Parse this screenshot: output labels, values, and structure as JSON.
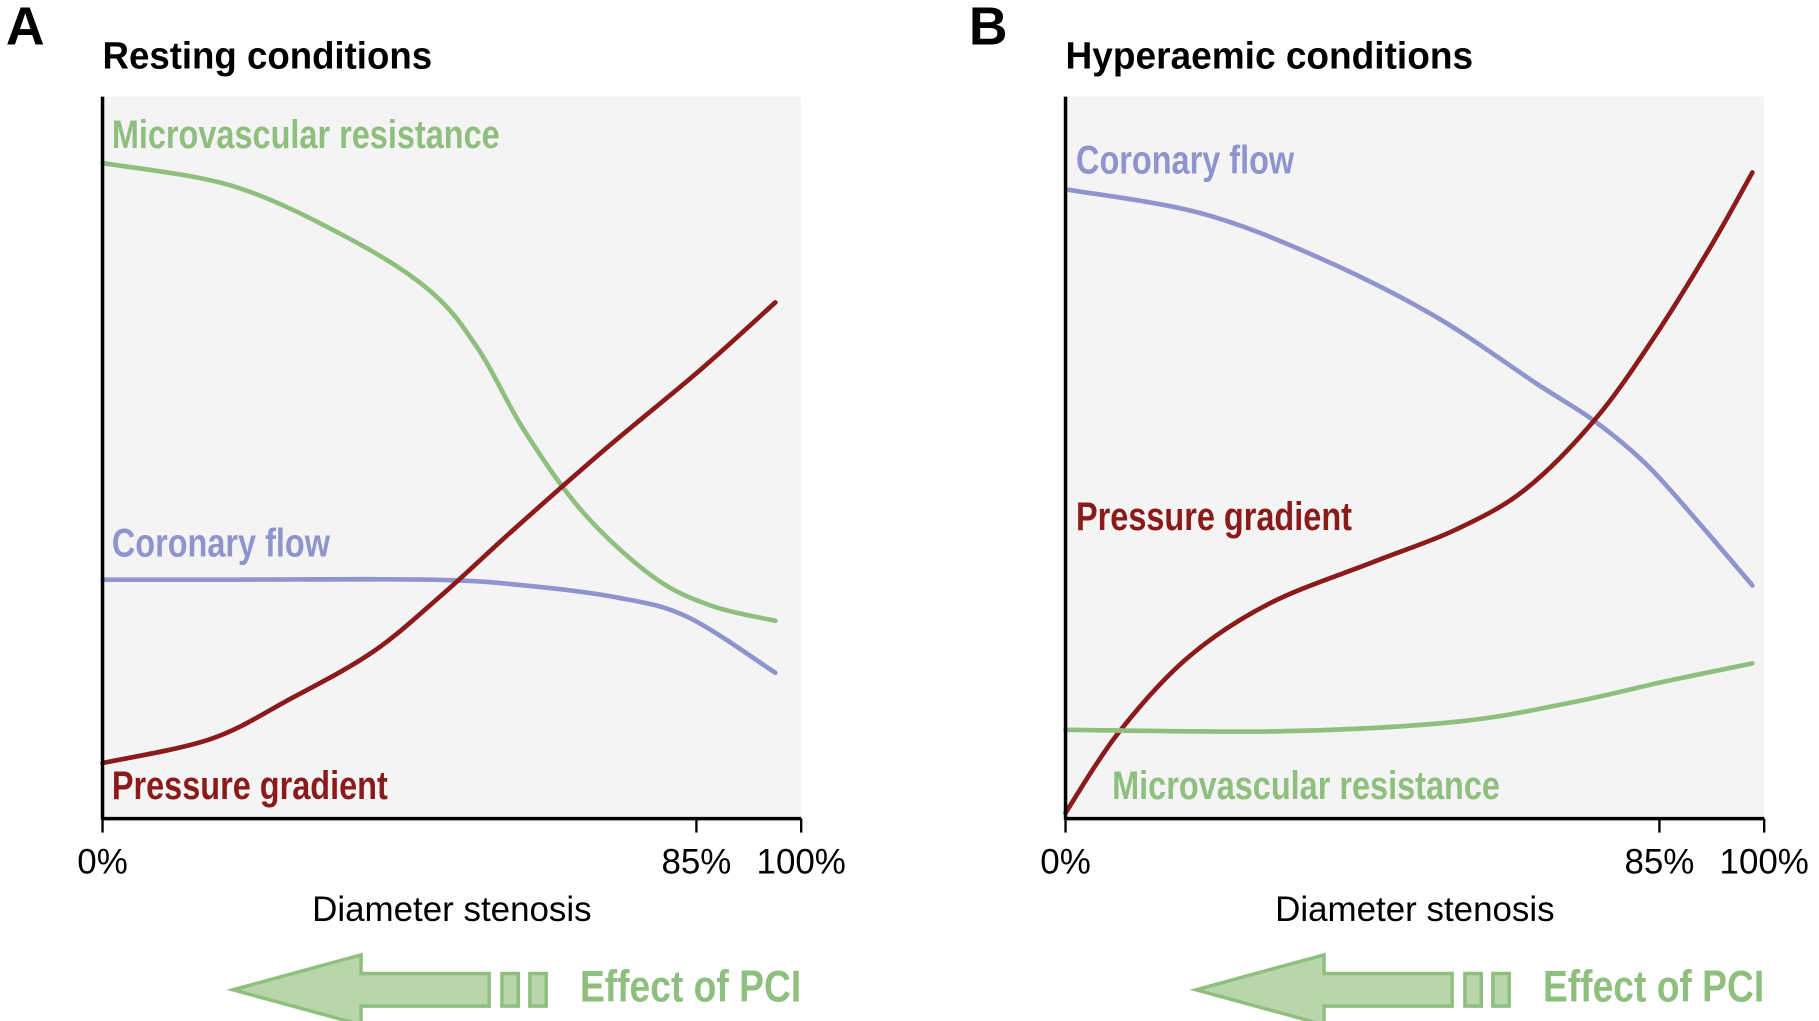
{
  "chart_data": [
    {
      "type": "line",
      "panel_label": "A",
      "title": "Resting conditions",
      "xlabel": "Diameter stenosis",
      "annotation": "Effect of PCI",
      "xlim": [
        0,
        100
      ],
      "ylim": [
        0,
        100
      ],
      "xticks": [
        {
          "value": 0,
          "label": "0%"
        },
        {
          "value": 85,
          "label": "85%"
        },
        {
          "value": 100,
          "label": "100%"
        }
      ],
      "series": [
        {
          "name": "Microvascular resistance",
          "color": "#8fbf7f",
          "x": [
            0,
            18.7,
            35.4,
            47,
            53.8,
            60.4,
            68.8,
            78.8,
            87.1,
            96.3
          ],
          "values": [
            90.8,
            87.6,
            80.3,
            73,
            65,
            53.7,
            42.4,
            33.5,
            29.5,
            27.4
          ]
        },
        {
          "name": "Coronary flow",
          "color": "#8f95cc",
          "x": [
            0,
            18.7,
            47,
            60.4,
            73.8,
            83.8,
            96.3
          ],
          "values": [
            33.1,
            33.1,
            33.1,
            32.3,
            30.6,
            27.9,
            20.2
          ]
        },
        {
          "name": "Pressure gradient",
          "color": "#8b1a1a",
          "x": [
            0,
            15.4,
            26.9,
            38.7,
            48.7,
            58.8,
            72.1,
            85.5,
            96.3
          ],
          "values": [
            7.7,
            11,
            16.6,
            23.1,
            31.1,
            40,
            51.3,
            62.1,
            71.5
          ]
        }
      ]
    },
    {
      "type": "line",
      "panel_label": "B",
      "title": "Hyperaemic conditions",
      "xlabel": "Diameter stenosis",
      "annotation": "Effect of PCI",
      "xlim": [
        0,
        100
      ],
      "ylim": [
        0,
        100
      ],
      "xticks": [
        {
          "value": 0,
          "label": "0%"
        },
        {
          "value": 85,
          "label": "85%"
        },
        {
          "value": 100,
          "label": "100%"
        }
      ],
      "series": [
        {
          "name": "Coronary flow",
          "color": "#8f95cc",
          "x": [
            0.5,
            19.2,
            35.8,
            52.5,
            67.5,
            75.8,
            83.3,
            90.8,
            98.3
          ],
          "values": [
            87.1,
            83.9,
            77.9,
            69.8,
            60.2,
            55,
            48.9,
            40.8,
            32.3
          ]
        },
        {
          "name": "Pressure gradient",
          "color": "#8b1a1a",
          "x": [
            0,
            7.5,
            17.5,
            29.2,
            44.2,
            55.8,
            65.8,
            75.8,
            84.2,
            92.5,
            98.3
          ],
          "values": [
            0.8,
            11.8,
            22.3,
            29.8,
            35.6,
            40,
            45.6,
            55.3,
            66.6,
            79.5,
            89.5
          ]
        },
        {
          "name": "Microvascular resistance",
          "color": "#8fbf7f",
          "x": [
            0,
            30.8,
            55.8,
            72.5,
            85.8,
            98.3
          ],
          "values": [
            12.3,
            12.1,
            13.4,
            16.1,
            19,
            21.5
          ]
        }
      ]
    }
  ]
}
